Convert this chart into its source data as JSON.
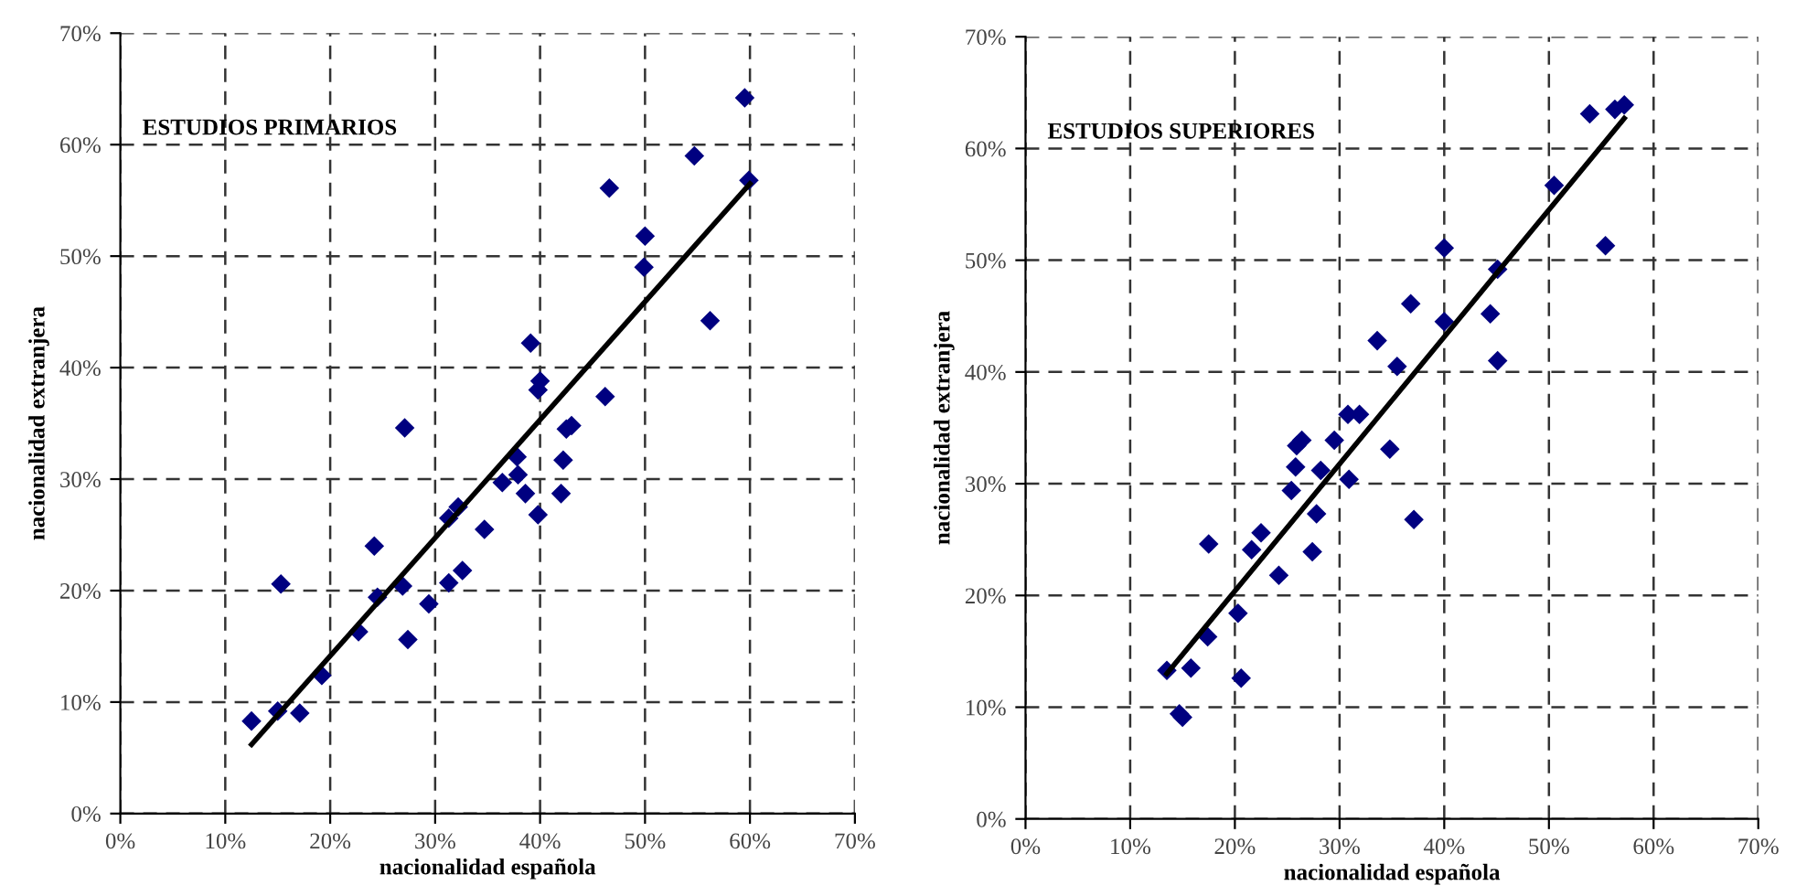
{
  "chart_data": [
    {
      "type": "scatter",
      "title": "ESTUDIOS PRIMARIOS",
      "xlabel": "nacionalidad española",
      "ylabel": "nacionalidad extranjera",
      "xlim": [
        0,
        0.7
      ],
      "ylim": [
        0,
        0.7
      ],
      "xticks": [
        {
          "value": 0,
          "label": "0%"
        },
        {
          "value": 0.1,
          "label": "10%"
        },
        {
          "value": 0.2,
          "label": "20%"
        },
        {
          "value": 0.3,
          "label": "30%"
        },
        {
          "value": 0.4,
          "label": "40%"
        },
        {
          "value": 0.5,
          "label": "50%"
        },
        {
          "value": 0.6,
          "label": "60%"
        },
        {
          "value": 0.7,
          "label": "70%"
        }
      ],
      "yticks": [
        {
          "value": 0,
          "label": "0%"
        },
        {
          "value": 0.1,
          "label": "10%"
        },
        {
          "value": 0.2,
          "label": "20%"
        },
        {
          "value": 0.3,
          "label": "30%"
        },
        {
          "value": 0.4,
          "label": "40%"
        },
        {
          "value": 0.5,
          "label": "50%"
        },
        {
          "value": 0.6,
          "label": "60%"
        },
        {
          "value": 0.7,
          "label": "70%"
        }
      ],
      "grid": true,
      "legend": false,
      "series": [
        {
          "color": "#000080",
          "marker": "diamond",
          "x": [
            0.595,
            0.547,
            0.466,
            0.599,
            0.5,
            0.499,
            0.562,
            0.391,
            0.4,
            0.398,
            0.462,
            0.271,
            0.425,
            0.43,
            0.378,
            0.422,
            0.364,
            0.379,
            0.386,
            0.42,
            0.398,
            0.313,
            0.322,
            0.347,
            0.242,
            0.153,
            0.313,
            0.326,
            0.245,
            0.269,
            0.294,
            0.227,
            0.274,
            0.192,
            0.125,
            0.15,
            0.171
          ],
          "values": [
            0.642,
            0.59,
            0.561,
            0.568,
            0.518,
            0.49,
            0.442,
            0.422,
            0.388,
            0.38,
            0.374,
            0.346,
            0.345,
            0.348,
            0.32,
            0.317,
            0.297,
            0.304,
            0.287,
            0.287,
            0.268,
            0.265,
            0.275,
            0.255,
            0.24,
            0.206,
            0.207,
            0.218,
            0.194,
            0.204,
            0.188,
            0.163,
            0.156,
            0.124,
            0.083,
            0.092,
            0.09
          ]
        },
        {
          "type": "line",
          "color": "#000000",
          "marker": "none",
          "line_style": "solid",
          "x": [
            0.125,
            0.6
          ],
          "values": [
            0.062,
            0.565
          ]
        }
      ]
    },
    {
      "type": "scatter",
      "title": "ESTUDIOS SUPERIORES",
      "xlabel": "nacionalidad española",
      "ylabel": "nacionalidad extranjera",
      "xlim": [
        0,
        0.7
      ],
      "ylim": [
        0,
        0.7
      ],
      "xticks": [
        {
          "value": 0,
          "label": "0%"
        },
        {
          "value": 0.1,
          "label": "10%"
        },
        {
          "value": 0.2,
          "label": "20%"
        },
        {
          "value": 0.3,
          "label": "30%"
        },
        {
          "value": 0.4,
          "label": "40%"
        },
        {
          "value": 0.5,
          "label": "50%"
        },
        {
          "value": 0.6,
          "label": "60%"
        },
        {
          "value": 0.7,
          "label": "70%"
        }
      ],
      "yticks": [
        {
          "value": 0,
          "label": "0%"
        },
        {
          "value": 0.1,
          "label": "10%"
        },
        {
          "value": 0.2,
          "label": "20%"
        },
        {
          "value": 0.3,
          "label": "30%"
        },
        {
          "value": 0.4,
          "label": "40%"
        },
        {
          "value": 0.5,
          "label": "50%"
        },
        {
          "value": 0.6,
          "label": "60%"
        },
        {
          "value": 0.7,
          "label": "70%"
        }
      ],
      "grid": true,
      "legend": false,
      "series": [
        {
          "color": "#000080",
          "marker": "diamond",
          "x": [
            0.572,
            0.563,
            0.539,
            0.505,
            0.4,
            0.554,
            0.451,
            0.368,
            0.4,
            0.444,
            0.336,
            0.355,
            0.451,
            0.308,
            0.319,
            0.264,
            0.259,
            0.295,
            0.348,
            0.258,
            0.282,
            0.309,
            0.254,
            0.278,
            0.371,
            0.225,
            0.216,
            0.175,
            0.274,
            0.242,
            0.203,
            0.174,
            0.135,
            0.158,
            0.206,
            0.147,
            0.15
          ],
          "values": [
            0.639,
            0.635,
            0.631,
            0.567,
            0.511,
            0.513,
            0.492,
            0.461,
            0.445,
            0.452,
            0.428,
            0.405,
            0.41,
            0.362,
            0.362,
            0.339,
            0.334,
            0.339,
            0.331,
            0.315,
            0.312,
            0.304,
            0.294,
            0.273,
            0.268,
            0.256,
            0.241,
            0.246,
            0.239,
            0.218,
            0.184,
            0.163,
            0.133,
            0.135,
            0.126,
            0.094,
            0.091
          ]
        },
        {
          "type": "line",
          "color": "#000000",
          "marker": "none",
          "line_style": "solid",
          "x": [
            0.135,
            0.572
          ],
          "values": [
            0.13,
            0.627
          ]
        }
      ]
    }
  ]
}
